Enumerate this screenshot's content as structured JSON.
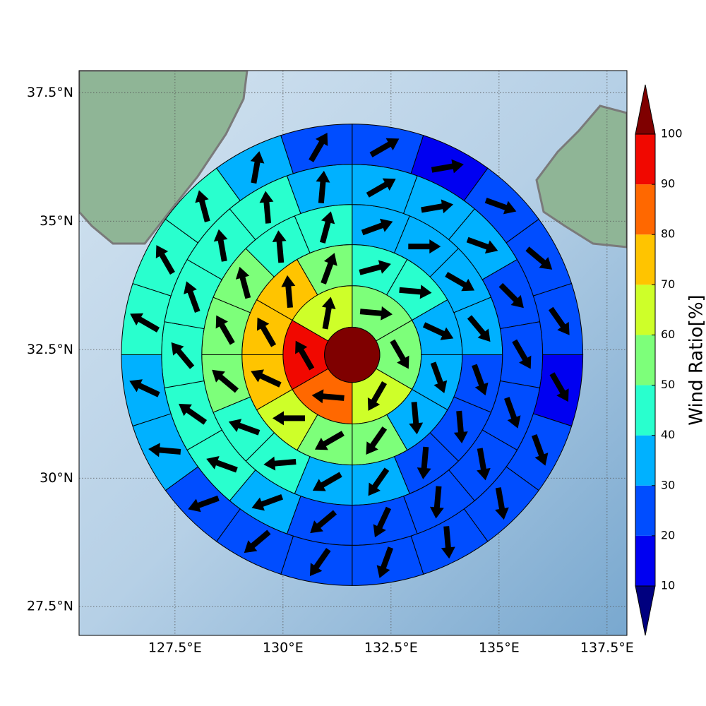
{
  "chart_data": {
    "type": "polar-sector-map",
    "center": [
      131.6,
      32.4
    ],
    "ring_edges": [
      0.64,
      1.6,
      2.55,
      3.48,
      4.41,
      5.34
    ],
    "center_value": 105,
    "rings": [
      {
        "values": [
          55,
          55,
          65,
          85,
          95,
          65
        ],
        "directions": [
          95,
          150,
          210,
          275,
          330,
          10
        ]
      },
      {
        "values": [
          45,
          45,
          35,
          35,
          35,
          55,
          55,
          65,
          75,
          75,
          75,
          55
        ],
        "directions": [
          75,
          95,
          115,
          160,
          175,
          215,
          240,
          270,
          295,
          330,
          355,
          20
        ]
      },
      {
        "values": [
          35,
          35,
          35,
          35,
          25,
          25,
          25,
          35,
          35,
          45,
          45,
          55,
          55,
          55,
          45,
          45
        ],
        "directions": [
          70,
          90,
          120,
          140,
          160,
          175,
          185,
          215,
          240,
          265,
          290,
          310,
          330,
          345,
          355,
          15
        ]
      },
      {
        "values": [
          35,
          35,
          35,
          25,
          25,
          25,
          25,
          25,
          25,
          25,
          35,
          45,
          45,
          45,
          45,
          45,
          45,
          35
        ],
        "directions": [
          60,
          80,
          110,
          135,
          150,
          160,
          170,
          185,
          205,
          230,
          250,
          290,
          305,
          320,
          340,
          350,
          355,
          5
        ]
      },
      {
        "values": [
          25,
          15,
          25,
          25,
          25,
          15,
          25,
          25,
          25,
          25,
          25,
          25,
          25,
          35,
          35,
          45,
          45,
          45,
          35,
          25
        ],
        "directions": [
          60,
          80,
          110,
          130,
          145,
          150,
          160,
          170,
          175,
          200,
          215,
          230,
          250,
          275,
          295,
          300,
          330,
          345,
          10,
          30
        ]
      }
    ],
    "xlim": [
      125.28,
      137.96
    ],
    "ylim": [
      26.94,
      37.93
    ],
    "xticks": [
      {
        "value": 127.5,
        "label": "127.5°E"
      },
      {
        "value": 130,
        "label": "130°E"
      },
      {
        "value": 132.5,
        "label": "132.5°E"
      },
      {
        "value": 135,
        "label": "135°E"
      },
      {
        "value": 137.5,
        "label": "137.5°E"
      }
    ],
    "yticks": [
      {
        "value": 27.5,
        "label": "27.5°N"
      },
      {
        "value": 30,
        "label": "30°N"
      },
      {
        "value": 32.5,
        "label": "32.5°N"
      },
      {
        "value": 35,
        "label": "35°N"
      },
      {
        "value": 37.5,
        "label": "37.5°N"
      }
    ],
    "grid": true,
    "colorbar": {
      "label": "Wind Ratio[%]",
      "levels": [
        10,
        20,
        30,
        40,
        50,
        60,
        70,
        80,
        90,
        100
      ],
      "colors": [
        "#0000f1",
        "#004dff",
        "#00b1ff",
        "#29ffce",
        "#7dff7a",
        "#ceff29",
        "#ffc400",
        "#ff6800",
        "#f10800"
      ],
      "under_color": "#00007f",
      "over_color": "#7f0000"
    }
  }
}
